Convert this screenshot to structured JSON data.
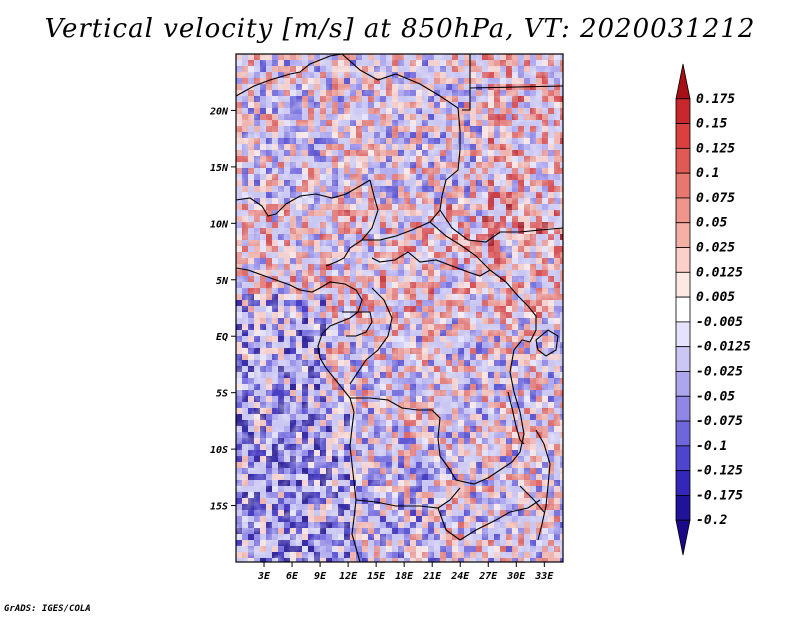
{
  "title": "Vertical velocity [m/s] at 850hPa, VT: 2020031212",
  "credit": "GrADS: IGES/COLA",
  "chart_data": {
    "type": "heatmap",
    "title": "Vertical velocity [m/s] at 850hPa, VT: 2020031212",
    "field": "Vertical velocity",
    "units": "m/s",
    "level": "850hPa",
    "valid_time": "2020031212",
    "lon_range": [
      0,
      35
    ],
    "lat_range": [
      -20,
      25
    ],
    "x_ticks": [
      {
        "value": 3,
        "label": "3E"
      },
      {
        "value": 6,
        "label": "6E"
      },
      {
        "value": 9,
        "label": "9E"
      },
      {
        "value": 12,
        "label": "12E"
      },
      {
        "value": 15,
        "label": "15E"
      },
      {
        "value": 18,
        "label": "18E"
      },
      {
        "value": 21,
        "label": "21E"
      },
      {
        "value": 24,
        "label": "24E"
      },
      {
        "value": 27,
        "label": "27E"
      },
      {
        "value": 30,
        "label": "30E"
      },
      {
        "value": 33,
        "label": "33E"
      }
    ],
    "y_ticks": [
      {
        "value": 20,
        "label": "20N"
      },
      {
        "value": 15,
        "label": "15N"
      },
      {
        "value": 10,
        "label": "10N"
      },
      {
        "value": 5,
        "label": "5N"
      },
      {
        "value": 0,
        "label": "EQ"
      },
      {
        "value": -5,
        "label": "5S"
      },
      {
        "value": -10,
        "label": "10S"
      },
      {
        "value": -15,
        "label": "15S"
      }
    ],
    "colorbar": {
      "levels": [
        "0.175",
        "0.15",
        "0.125",
        "0.1",
        "0.075",
        "0.05",
        "0.025",
        "0.0125",
        "0.005",
        "-0.005",
        "-0.0125",
        "-0.025",
        "-0.05",
        "-0.075",
        "-0.1",
        "-0.125",
        "-0.175",
        "-0.2"
      ],
      "colors": [
        "#a50f15",
        "#c8282c",
        "#d9403e",
        "#e05a55",
        "#e8786f",
        "#ef958b",
        "#f5b0a5",
        "#fad0c8",
        "#fde8e3",
        "#ffffff",
        "#e5e3fb",
        "#cbc7f5",
        "#aca6ee",
        "#8f86e6",
        "#6f66dc",
        "#4e45cf",
        "#3326b8",
        "#20139a",
        "#1a0a8a"
      ]
    }
  }
}
